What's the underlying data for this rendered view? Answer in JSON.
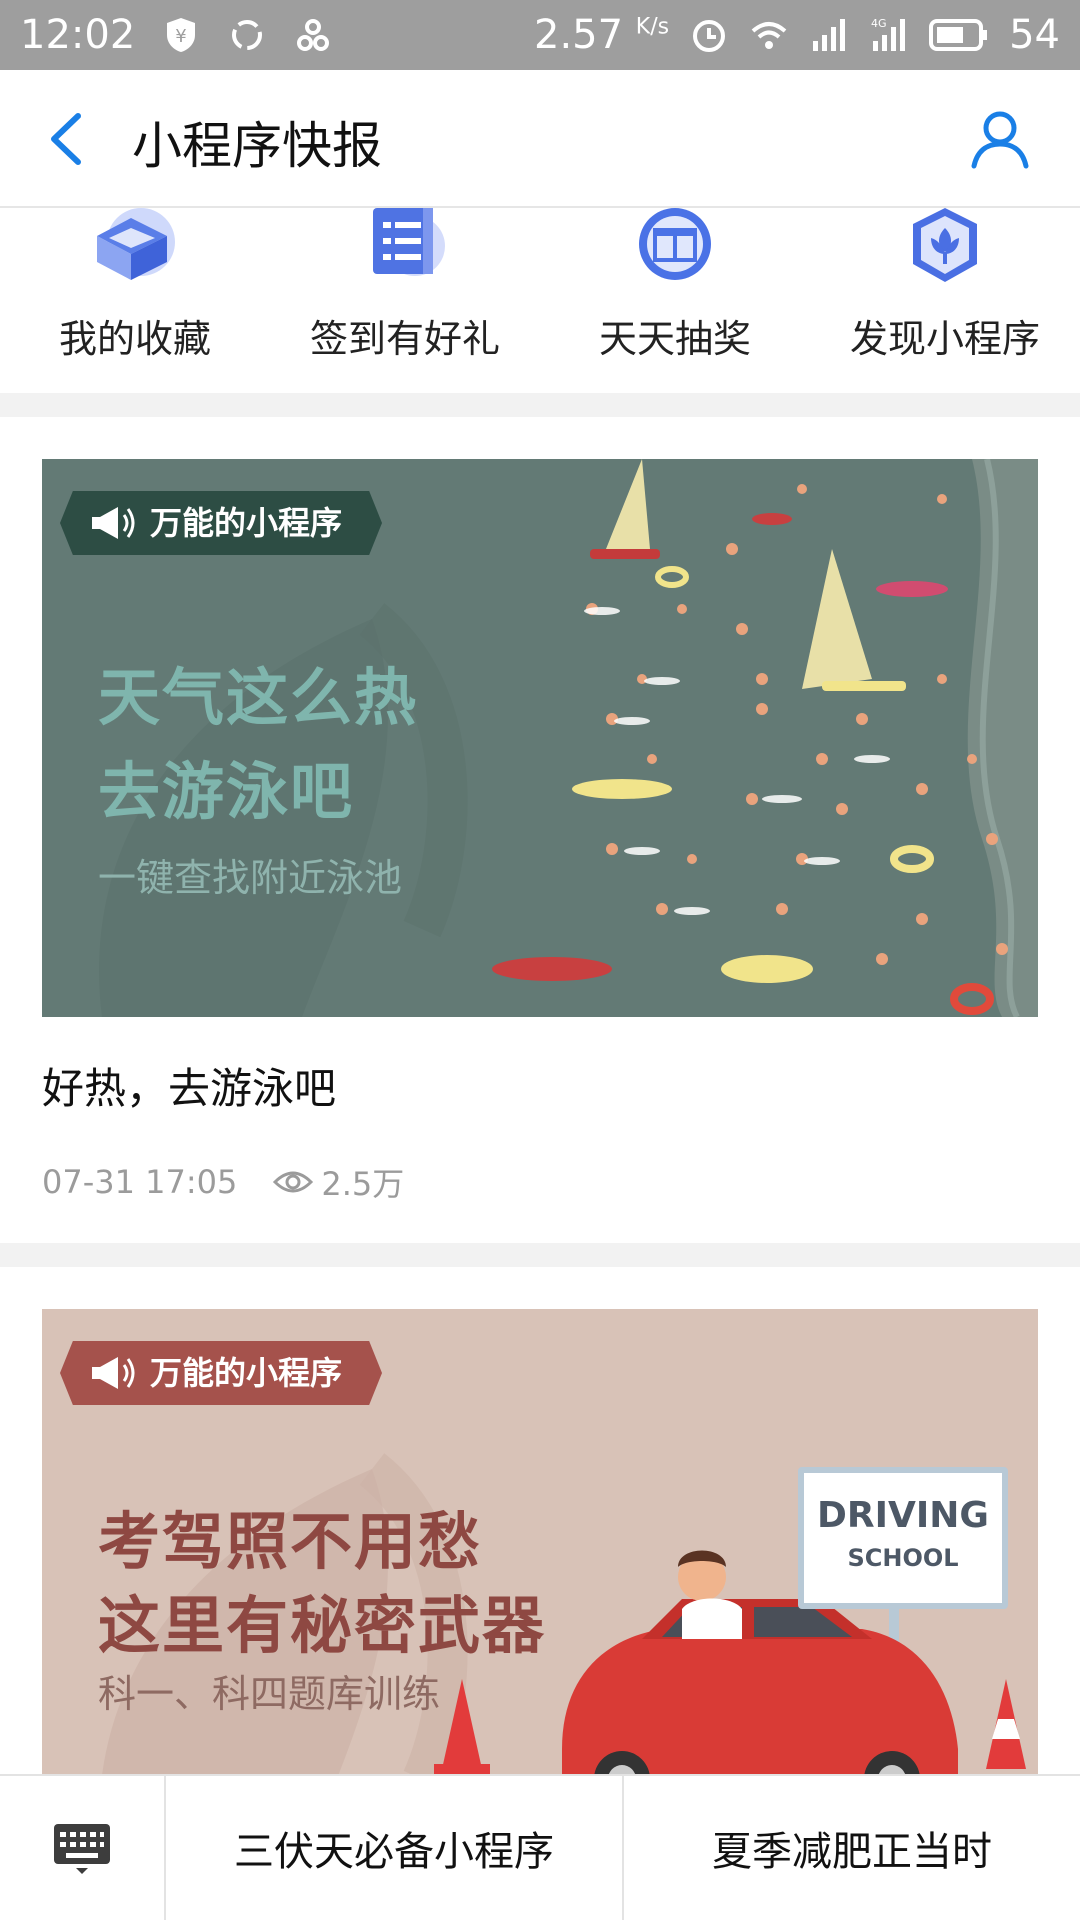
{
  "status_bar": {
    "time": "12:02",
    "speed": "2.57",
    "speed_unit": "K/s",
    "network": "4G",
    "battery": "54"
  },
  "header": {
    "title": "小程序快报"
  },
  "shortcuts": [
    {
      "label": "我的收藏",
      "icon": "bookmark-cube-icon"
    },
    {
      "label": "签到有好礼",
      "icon": "checkin-list-icon"
    },
    {
      "label": "天天抽奖",
      "icon": "gift-icon"
    },
    {
      "label": "发现小程序",
      "icon": "discover-flower-icon"
    }
  ],
  "cards": [
    {
      "banner": {
        "tag": "万能的小程序",
        "line1": "天气这么热",
        "line2": "去游泳吧",
        "sub": "一键查找附近泳池",
        "bg": "#637a75",
        "tag_bg": "#2d4d44",
        "text_color": "#7fb5ad"
      },
      "title": "好热，去游泳吧",
      "date": "07-31 17:05",
      "views": "2.5万"
    },
    {
      "banner": {
        "tag": "万能的小程序",
        "line1": "考驾照不用愁",
        "line2": "这里有秘密武器",
        "sub": "科一、科四题库训练",
        "sign_line1": "DRIVING",
        "sign_line2": "SCHOOL",
        "bg": "#d8c2b7",
        "tag_bg": "#a5524c",
        "text_color": "#8e4842"
      }
    }
  ],
  "bottom_bar": {
    "keyboard_icon": "keyboard-icon",
    "items": [
      "三伏天必备小程序",
      "夏季减肥正当时"
    ]
  },
  "colors": {
    "accent": "#1a7fe6",
    "status_bar_bg": "#9e9e9e",
    "divider": "#f2f2f2"
  }
}
